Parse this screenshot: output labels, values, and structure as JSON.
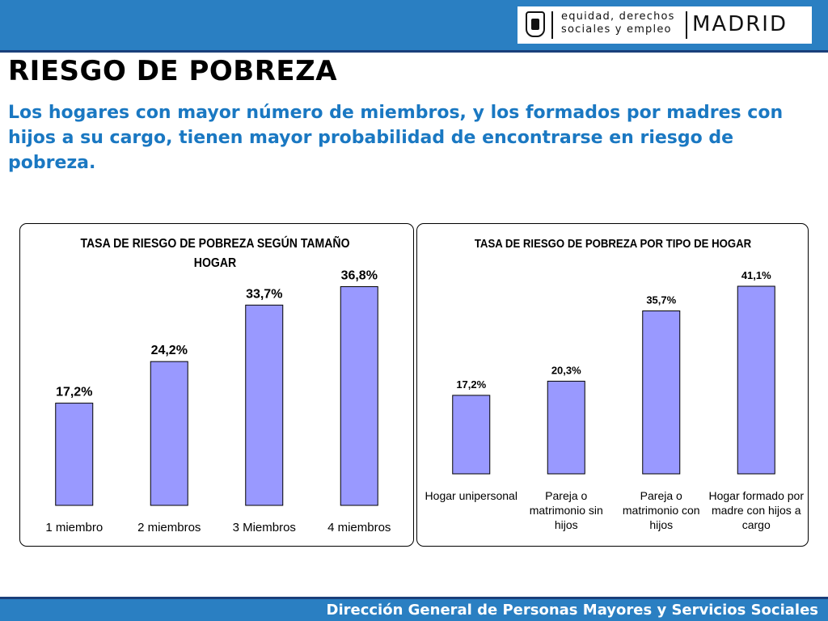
{
  "header": {
    "logo_tagline_1": "equidad, derechos",
    "logo_tagline_2": "sociales y empleo",
    "logo_city": "MADRID",
    "colors": {
      "band": "#2a7fc2",
      "band_border": "#1a3f7a"
    }
  },
  "page": {
    "title": "RIESGO DE POBREZA",
    "subtitle": "Los hogares con mayor número de miembros, y los formados por madres con hijos a su cargo, tienen mayor probabilidad de encontrarse en riesgo de pobreza."
  },
  "footer": {
    "text": "Dirección General de Personas Mayores y Servicios Sociales"
  },
  "chart_data": [
    {
      "type": "bar",
      "title": "TASA DE RIESGO DE POBREZA SEGÚN TAMAÑO HOGAR",
      "title_lines": [
        "TASA DE RIESGO DE POBREZA SEGÚN TAMAÑO",
        "HOGAR"
      ],
      "categories": [
        "1 miembro",
        "2 miembros",
        "3 Miembros",
        "4 miembros"
      ],
      "values": [
        17.2,
        24.2,
        33.7,
        36.8
      ],
      "data_labels": [
        "17,2%",
        "24,2%",
        "33,7%",
        "36,8%"
      ],
      "ylim": [
        0,
        40
      ],
      "grid": false,
      "legend": "none",
      "bar_color": "#9999ff"
    },
    {
      "type": "bar",
      "title": "TASA DE RIESGO DE POBREZA POR TIPO DE HOGAR",
      "title_lines": [
        "TASA DE RIESGO DE POBREZA POR TIPO DE HOGAR"
      ],
      "categories": [
        "Hogar unipersonal",
        "Pareja o matrimonio sin hijos",
        "Pareja o matrimonio con hijos",
        "Hogar formado por madre con hijos a cargo"
      ],
      "category_lines": [
        [
          "Hogar unipersonal"
        ],
        [
          "Pareja o",
          "matrimonio sin",
          "hijos"
        ],
        [
          "Pareja o",
          "matrimonio con",
          "hijos"
        ],
        [
          "Hogar formado por",
          "madre con hijos a",
          "cargo"
        ]
      ],
      "values": [
        17.2,
        20.3,
        35.7,
        41.1
      ],
      "data_labels": [
        "17,2%",
        "20,3%",
        "35,7%",
        "41,1%"
      ],
      "ylim": [
        0,
        41.1
      ],
      "grid": false,
      "legend": "none",
      "bar_color": "#9999ff"
    }
  ]
}
